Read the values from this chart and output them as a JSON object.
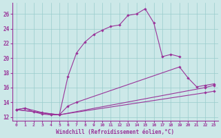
{
  "xlabel": "Windchill (Refroidissement éolien,°C)",
  "bg_color": "#cce8e8",
  "line_color": "#993399",
  "grid_color": "#99cccc",
  "xlim": [
    -0.5,
    23.5
  ],
  "ylim": [
    11.5,
    27.5
  ],
  "xticks": [
    0,
    1,
    2,
    3,
    4,
    5,
    6,
    7,
    8,
    9,
    10,
    11,
    12,
    13,
    14,
    15,
    16,
    17,
    18,
    19,
    20,
    21,
    22,
    23
  ],
  "yticks": [
    12,
    14,
    16,
    18,
    20,
    22,
    24,
    26
  ],
  "line1_x": [
    0,
    1,
    2,
    3,
    4,
    5,
    6,
    7,
    8,
    9,
    10,
    11,
    12,
    13,
    14,
    15,
    16,
    17,
    18,
    19
  ],
  "line1_y": [
    13.0,
    13.2,
    12.7,
    12.4,
    12.3,
    12.3,
    17.5,
    20.7,
    22.2,
    23.2,
    23.8,
    24.3,
    24.5,
    25.8,
    26.0,
    26.7,
    24.8,
    20.2,
    20.5,
    20.2
  ],
  "line2_x": [
    0,
    1,
    3,
    4,
    5,
    6,
    7,
    19,
    20,
    21,
    22,
    23
  ],
  "line2_y": [
    13.0,
    13.2,
    12.6,
    12.3,
    12.3,
    13.5,
    14.0,
    18.8,
    17.3,
    16.1,
    16.3,
    16.5
  ],
  "line3_x": [
    0,
    5,
    22,
    23
  ],
  "line3_y": [
    13.0,
    12.3,
    16.0,
    16.3
  ],
  "line4_x": [
    0,
    5,
    22,
    23
  ],
  "line4_y": [
    13.0,
    12.3,
    15.3,
    15.5
  ]
}
